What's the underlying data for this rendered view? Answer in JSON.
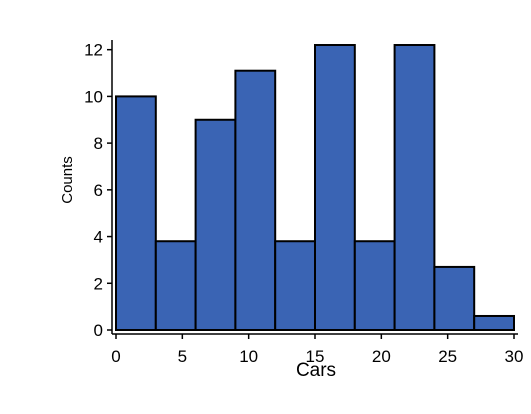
{
  "chart_data": {
    "type": "bar",
    "title": "",
    "xlabel": "Cars",
    "ylabel": "Counts",
    "bin_edges": [
      0,
      3,
      6,
      9,
      12,
      15,
      18,
      21,
      24,
      27,
      30
    ],
    "values": [
      10,
      3.8,
      9,
      11.1,
      3.8,
      12.2,
      3.8,
      12.2,
      2.7,
      0.6
    ],
    "xlim": [
      0,
      30
    ],
    "ylim": [
      0,
      12.5
    ],
    "xticks": [
      0,
      5,
      10,
      15,
      20,
      25,
      30
    ],
    "yticks": [
      0,
      2,
      4,
      6,
      8,
      10,
      12
    ],
    "bar_color": "#3a64b4",
    "edge_color": "#000000",
    "grid": false
  }
}
